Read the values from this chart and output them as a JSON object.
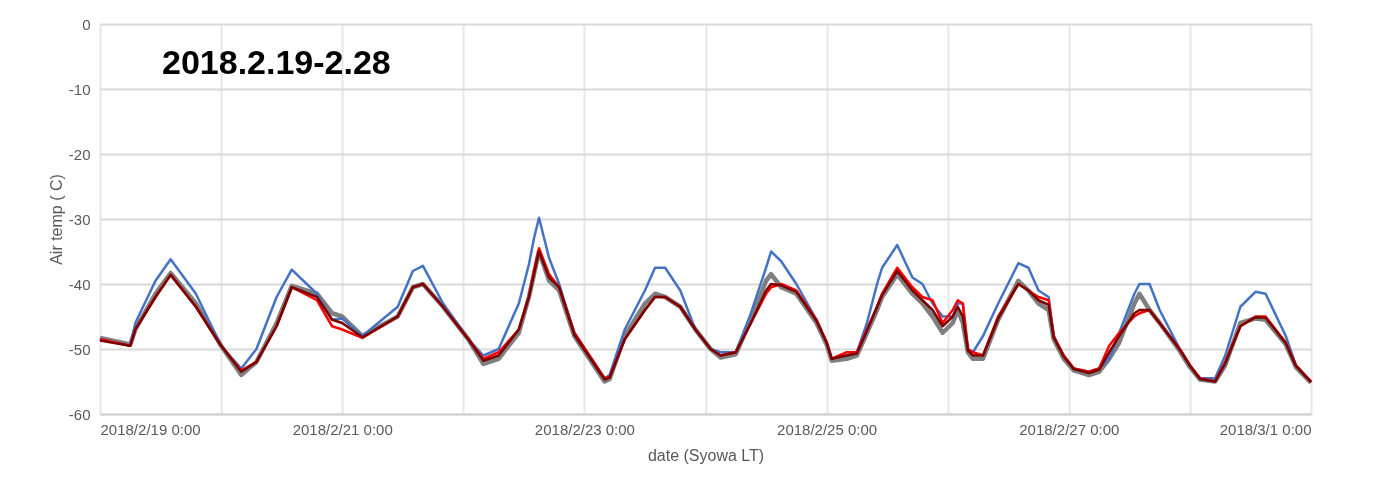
{
  "chart_data": {
    "type": "line",
    "title": "2018.2.19-2.28",
    "xlabel": "date (Syowa LT)",
    "ylabel": "Air temp ( C)",
    "x": [
      "2018-02-19T00:00",
      "2018-02-19T06:00",
      "2018-02-19T07:00",
      "2018-02-19T11:00",
      "2018-02-19T14:00",
      "2018-02-19T19:00",
      "2018-02-20T00:00",
      "2018-02-20T04:00",
      "2018-02-20T07:00",
      "2018-02-20T11:00",
      "2018-02-20T14:00",
      "2018-02-20T19:00",
      "2018-02-20T22:00",
      "2018-02-21T00:00",
      "2018-02-21T04:00",
      "2018-02-21T11:00",
      "2018-02-21T14:00",
      "2018-02-21T16:00",
      "2018-02-21T20:00",
      "2018-02-22T01:00",
      "2018-02-22T04:00",
      "2018-02-22T07:00",
      "2018-02-22T11:00",
      "2018-02-22T13:00",
      "2018-02-22T14:00",
      "2018-02-22T15:00",
      "2018-02-22T17:00",
      "2018-02-22T19:00",
      "2018-02-22T22:00",
      "2018-02-23T04:00",
      "2018-02-23T05:00",
      "2018-02-23T08:00",
      "2018-02-23T12:00",
      "2018-02-23T14:00",
      "2018-02-23T16:00",
      "2018-02-23T19:00",
      "2018-02-23T22:00",
      "2018-02-24T01:00",
      "2018-02-24T03:00",
      "2018-02-24T06:00",
      "2018-02-24T09:00",
      "2018-02-24T12:00",
      "2018-02-24T13:00",
      "2018-02-24T15:00",
      "2018-02-24T18:00",
      "2018-02-24T22:00",
      "2018-02-25T00:00",
      "2018-02-25T01:00",
      "2018-02-25T04:00",
      "2018-02-25T06:00",
      "2018-02-25T08:00",
      "2018-02-25T10:00",
      "2018-02-25T11:00",
      "2018-02-25T14:00",
      "2018-02-25T17:00",
      "2018-02-25T19:00",
      "2018-02-25T21:00",
      "2018-02-25T23:00",
      "2018-02-26T01:00",
      "2018-02-26T02:00",
      "2018-02-26T03:00",
      "2018-02-26T04:00",
      "2018-02-26T05:00",
      "2018-02-26T07:00",
      "2018-02-26T10:00",
      "2018-02-26T14:00",
      "2018-02-26T16:00",
      "2018-02-26T18:00",
      "2018-02-26T20:00",
      "2018-02-26T21:00",
      "2018-02-26T23:00",
      "2018-02-27T01:00",
      "2018-02-27T04:00",
      "2018-02-27T06:00",
      "2018-02-27T08:00",
      "2018-02-27T10:00",
      "2018-02-27T13:00",
      "2018-02-27T14:00",
      "2018-02-27T16:00",
      "2018-02-27T18:00",
      "2018-02-27T22:00",
      "2018-02-28T00:00",
      "2018-02-28T02:00",
      "2018-02-28T05:00",
      "2018-02-28T07:00",
      "2018-02-28T10:00",
      "2018-02-28T13:00",
      "2018-02-28T15:00",
      "2018-02-28T19:00",
      "2018-02-28T21:00",
      "2018-03-01T00:00"
    ],
    "series": [
      {
        "color": "#7f7f7f",
        "values": [
          -48.3,
          -49.3,
          -47,
          -41.5,
          -38.3,
          -43,
          -49.5,
          -54,
          -52,
          -46,
          -40.3,
          -41.5,
          -44.5,
          -45,
          -48,
          -45,
          -40.5,
          -40,
          -43.5,
          -48.5,
          -52.3,
          -51.5,
          -47.5,
          -42,
          -38.5,
          -35,
          -39.5,
          -41,
          -48,
          -55,
          -54.6,
          -48,
          -43,
          -41.5,
          -42,
          -43.5,
          -47,
          -50,
          -51.3,
          -50.8,
          -45.5,
          -39.5,
          -38.5,
          -40.5,
          -41.5,
          -46,
          -49.3,
          -51.8,
          -51.5,
          -51,
          -47.5,
          -44,
          -42,
          -38.5,
          -41.5,
          -43,
          -45,
          -47.5,
          -46,
          -44,
          -46,
          -50.5,
          -51.5,
          -51.5,
          -45.5,
          -39.5,
          -41,
          -43,
          -44,
          -48.5,
          -51.5,
          -53.3,
          -54,
          -53.5,
          -51.5,
          -49,
          -43,
          -41.5,
          -44,
          -46,
          -50.3,
          -52.8,
          -54.7,
          -55,
          -52.5,
          -46,
          -45.3,
          -45.5,
          -49.3,
          -52.8,
          -55.2
        ]
      },
      {
        "color": "#4472c4",
        "values": [
          -48.5,
          -49.5,
          -46,
          -39.5,
          -36.2,
          -41.5,
          -49.5,
          -53,
          -50,
          -42,
          -37.8,
          -41.5,
          -45.5,
          -45.3,
          -48,
          -43.5,
          -38,
          -37.2,
          -43,
          -48.5,
          -51,
          -50,
          -43,
          -37,
          -33,
          -29.8,
          -36,
          -40,
          -47.5,
          -54.5,
          -54,
          -47,
          -41,
          -37.5,
          -37.5,
          -41,
          -47,
          -50,
          -50.5,
          -50.5,
          -44.5,
          -37.5,
          -35,
          -36.5,
          -40,
          -45.5,
          -49,
          -51.5,
          -51,
          -50.5,
          -46,
          -40,
          -37.5,
          -34,
          -39,
          -40,
          -43,
          -45,
          -45,
          -43,
          -43,
          -50,
          -50.5,
          -48,
          -43,
          -36.8,
          -37.5,
          -41,
          -42,
          -48,
          -51,
          -53,
          -53.5,
          -53,
          -51.5,
          -47.5,
          -41.5,
          -40,
          -40,
          -44,
          -50,
          -52.5,
          -54.5,
          -54.5,
          -51,
          -43.5,
          -41.2,
          -41.5,
          -48,
          -52.5,
          -55
        ]
      },
      {
        "color": "#ff0000",
        "values": [
          -48.5,
          -49.5,
          -47,
          -42,
          -38.6,
          -43.5,
          -49.5,
          -53.3,
          -52,
          -46.5,
          -40.5,
          -42.5,
          -46.5,
          -47,
          -48.3,
          -45,
          -40.5,
          -40,
          -43.5,
          -48.5,
          -51.5,
          -50.5,
          -47,
          -42,
          -38,
          -34.5,
          -38.5,
          -40.5,
          -47.5,
          -54.5,
          -54.3,
          -48.5,
          -44,
          -42,
          -42,
          -43.5,
          -47,
          -50,
          -51,
          -50.5,
          -46,
          -41.5,
          -40.5,
          -40,
          -41,
          -45.5,
          -49,
          -51.5,
          -50.5,
          -50.5,
          -47,
          -43.5,
          -41.5,
          -37.5,
          -40.5,
          -42,
          -42.5,
          -46,
          -44,
          -42.5,
          -43,
          -50,
          -50.5,
          -51,
          -45,
          -40,
          -41,
          -42,
          -42.5,
          -48,
          -51,
          -53,
          -53.5,
          -53,
          -49.5,
          -47.5,
          -45,
          -44.5,
          -44,
          -46,
          -50,
          -52.5,
          -54.5,
          -55,
          -52,
          -46.5,
          -45,
          -45,
          -49,
          -52.5,
          -55
        ]
      },
      {
        "color": "#7b0000",
        "values": [
          -48.7,
          -49.5,
          -47,
          -42,
          -38.6,
          -43.5,
          -49.5,
          -53.5,
          -52,
          -46.5,
          -40.5,
          -42,
          -45.5,
          -46,
          -48.2,
          -45,
          -40.5,
          -40,
          -43.5,
          -48.5,
          -51.8,
          -51,
          -47,
          -42,
          -38.5,
          -35,
          -39,
          -40.5,
          -47.8,
          -54.7,
          -54.4,
          -48.5,
          -44,
          -42,
          -42,
          -43.5,
          -47,
          -50,
          -51,
          -50.5,
          -46,
          -41,
          -40,
          -40.2,
          -41.2,
          -45.7,
          -49,
          -51.5,
          -51,
          -50.7,
          -47.2,
          -43.5,
          -41.7,
          -38,
          -41,
          -42.5,
          -44,
          -46.5,
          -45,
          -43.5,
          -45,
          -50.2,
          -51,
          -51,
          -45.3,
          -40,
          -41,
          -42.5,
          -43.2,
          -48.2,
          -51.2,
          -53.1,
          -53.7,
          -53.2,
          -50.5,
          -48,
          -44.5,
          -44,
          -44,
          -46,
          -50.1,
          -52.6,
          -54.6,
          -55,
          -52.2,
          -46.5,
          -45.1,
          -45.2,
          -49.1,
          -52.6,
          -55.1
        ]
      }
    ],
    "xlim": [
      "2018-02-19T00:00",
      "2018-03-01T00:00"
    ],
    "xticks": [
      {
        "value": "2018-02-19T00:00",
        "label": "2018/2/19 0:00"
      },
      {
        "value": "2018-02-20T00:00",
        "label": null
      },
      {
        "value": "2018-02-21T00:00",
        "label": "2018/2/21 0:00"
      },
      {
        "value": "2018-02-22T00:00",
        "label": null
      },
      {
        "value": "2018-02-23T00:00",
        "label": "2018/2/23 0:00"
      },
      {
        "value": "2018-02-24T00:00",
        "label": null
      },
      {
        "value": "2018-02-25T00:00",
        "label": "2018/2/25 0:00"
      },
      {
        "value": "2018-02-26T00:00",
        "label": null
      },
      {
        "value": "2018-02-27T00:00",
        "label": "2018/2/27 0:00"
      },
      {
        "value": "2018-02-28T00:00",
        "label": null
      },
      {
        "value": "2018-03-01T00:00",
        "label": "2018/3/1 0:00"
      }
    ],
    "ylim": [
      -60,
      0
    ],
    "yticks": [
      -60,
      -50,
      -40,
      -30,
      -20,
      -10,
      0
    ],
    "grid": true,
    "legend": false,
    "marker": "none",
    "line_style": "solid"
  }
}
